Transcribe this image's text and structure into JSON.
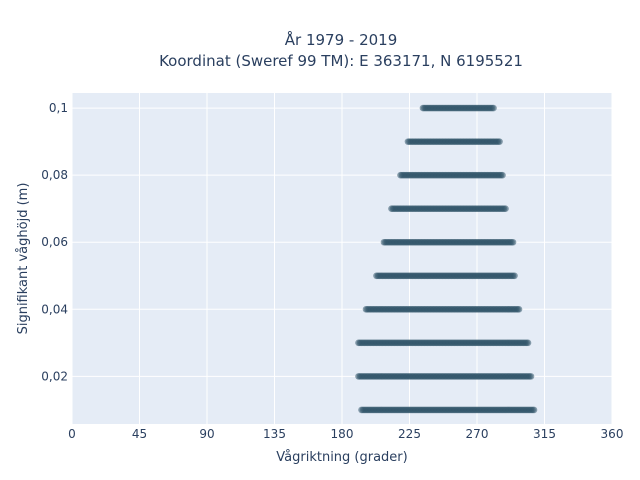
{
  "chart_data": {
    "type": "scatter",
    "title": [
      "År 1979 - 2019",
      "Koordinat (Sweref 99 TM): E 363171, N 6195521"
    ],
    "xlabel": "Vågriktning (grader)",
    "ylabel": "Signifikant våghöjd (m)",
    "xlim": [
      0,
      360
    ],
    "ylim": [
      0.0058,
      0.1045
    ],
    "xticks": [
      0,
      45,
      90,
      135,
      180,
      225,
      270,
      315,
      360
    ],
    "xtick_labels": [
      "0",
      "45",
      "90",
      "135",
      "180",
      "225",
      "270",
      "315",
      "360"
    ],
    "yticks": [
      0.02,
      0.04,
      0.06,
      0.08,
      0.1
    ],
    "ytick_labels": [
      "0,02",
      "0,04",
      "0,06",
      "0,08",
      "0,1"
    ],
    "grid": true,
    "colors": {
      "plot_bg": "#e5ecf6",
      "grid": "#ffffff",
      "marker": "#2f5468",
      "text": "#2a3f5f"
    },
    "series": [
      {
        "points": [
          {
            "y": 0.01,
            "x_min": 193,
            "x_max": 308
          },
          {
            "y": 0.02,
            "x_min": 191,
            "x_max": 306
          },
          {
            "y": 0.03,
            "x_min": 191,
            "x_max": 304
          },
          {
            "y": 0.04,
            "x_min": 196,
            "x_max": 298
          },
          {
            "y": 0.05,
            "x_min": 203,
            "x_max": 295
          },
          {
            "y": 0.06,
            "x_min": 208,
            "x_max": 294
          },
          {
            "y": 0.07,
            "x_min": 213,
            "x_max": 289
          },
          {
            "y": 0.08,
            "x_min": 219,
            "x_max": 287
          },
          {
            "y": 0.09,
            "x_min": 224,
            "x_max": 285
          },
          {
            "y": 0.1,
            "x_min": 234,
            "x_max": 281
          }
        ]
      }
    ]
  }
}
